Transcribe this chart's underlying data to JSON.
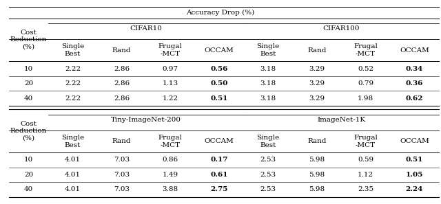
{
  "title": "Accuracy Drop (%)",
  "top_section": {
    "left_group": "CIFAR10",
    "right_group": "CIFAR100",
    "col_headers": [
      "Single\nBest",
      "Rand",
      "Frugal\n-MCT",
      "OCCAM",
      "Single\nBest",
      "Rand",
      "Frugal\n-MCT",
      "OCCAM"
    ],
    "row_label": "Cost\nReduction\n(%)",
    "rows": [
      {
        "label": "10",
        "values": [
          "2.22",
          "2.86",
          "0.97",
          "0.56",
          "3.18",
          "3.29",
          "0.52",
          "0.34"
        ]
      },
      {
        "label": "20",
        "values": [
          "2.22",
          "2.86",
          "1.13",
          "0.50",
          "3.18",
          "3.29",
          "0.79",
          "0.36"
        ]
      },
      {
        "label": "40",
        "values": [
          "2.22",
          "2.86",
          "1.22",
          "0.51",
          "3.18",
          "3.29",
          "1.98",
          "0.62"
        ]
      }
    ],
    "bold_cols": [
      3,
      7
    ]
  },
  "bottom_section": {
    "left_group": "Tiny-ImageNet-200",
    "right_group": "ImageNet-1K",
    "col_headers": [
      "Single\nBest",
      "Rand",
      "Frugal\n-MCT",
      "OCCAM",
      "Single\nBest",
      "Rand",
      "Frugal\n-MCT",
      "OCCAM"
    ],
    "row_label": "Cost\nReduction\n(%)",
    "rows": [
      {
        "label": "10",
        "values": [
          "4.01",
          "7.03",
          "0.86",
          "0.17",
          "2.53",
          "5.98",
          "0.59",
          "0.51"
        ]
      },
      {
        "label": "20",
        "values": [
          "4.01",
          "7.03",
          "1.49",
          "0.61",
          "2.53",
          "5.98",
          "1.12",
          "1.05"
        ]
      },
      {
        "label": "40",
        "values": [
          "4.01",
          "7.03",
          "3.88",
          "2.75",
          "2.53",
          "5.98",
          "2.35",
          "2.24"
        ]
      }
    ],
    "bold_cols": [
      3,
      7
    ]
  },
  "font_size": 7.5,
  "bg_color": "#ffffff"
}
